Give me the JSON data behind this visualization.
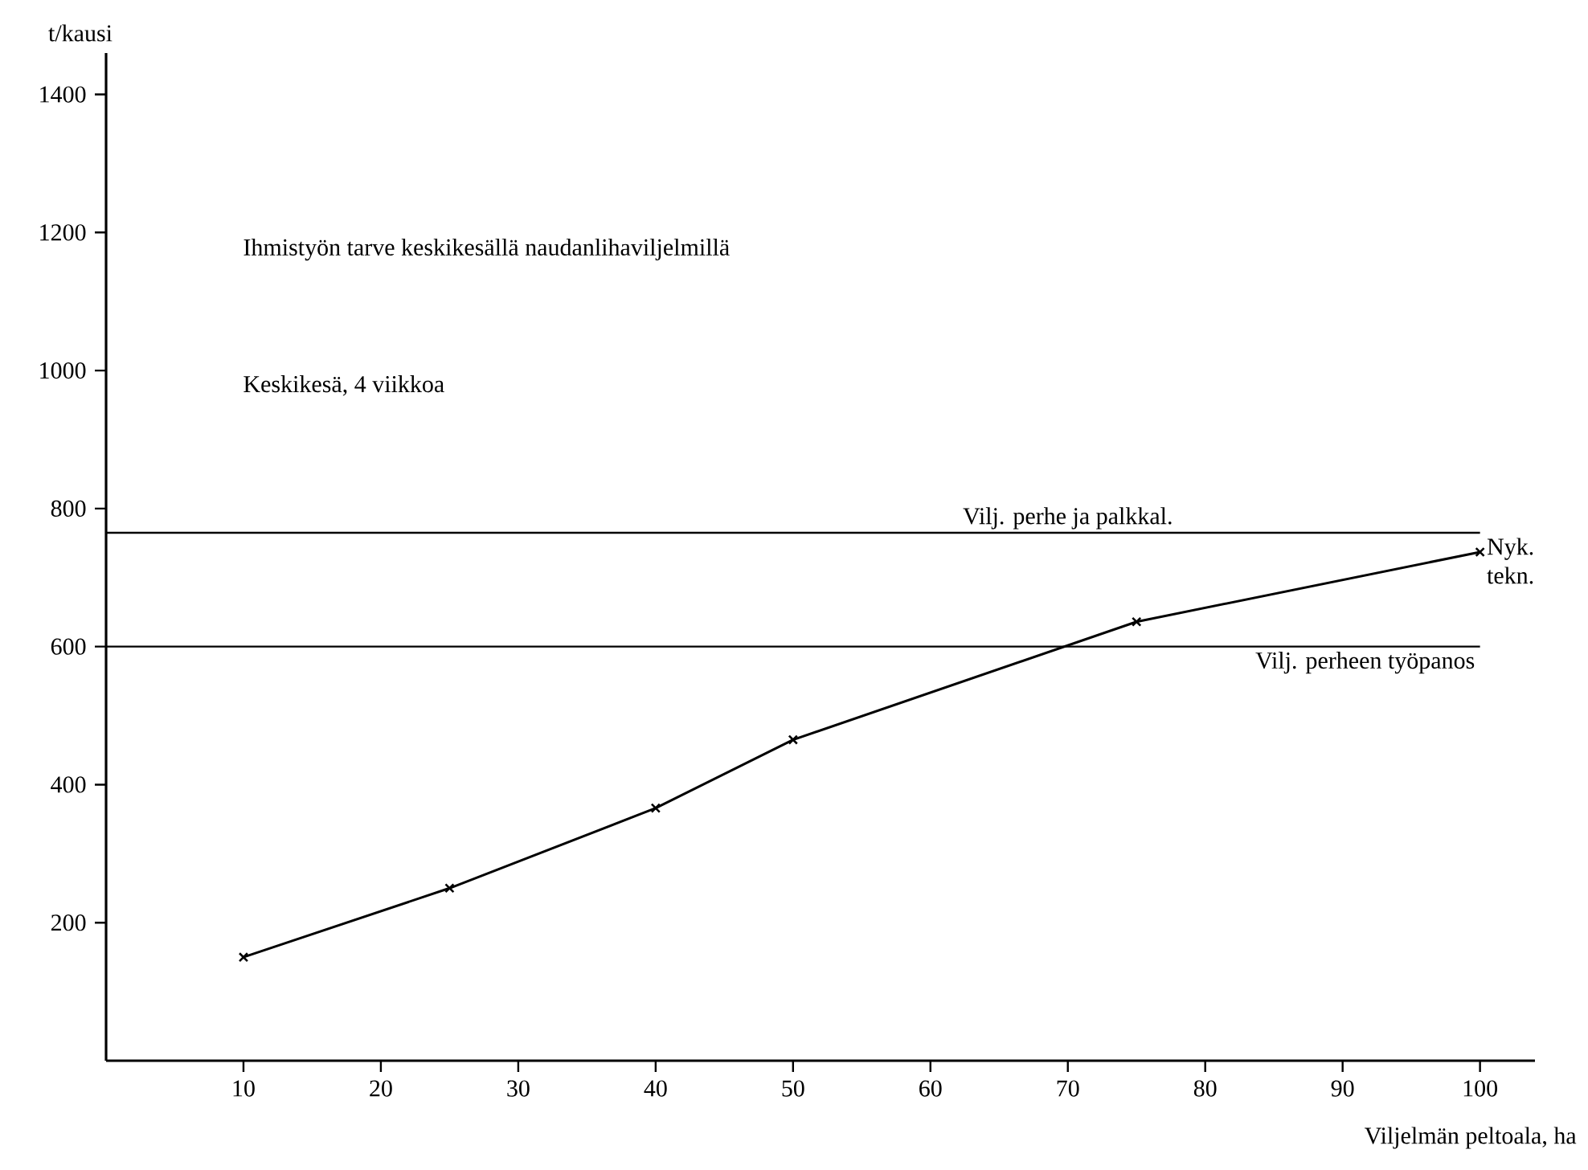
{
  "chart_data": {
    "type": "line",
    "title": "Ihmistyön tarve keskikesällä naudanlihaviljelmillä",
    "subtitle": "Keskikesä, 4 viikkoa",
    "xlabel": "Viljelmän peltoala, ha",
    "ylabel": "t/kausi",
    "x": [
      10,
      25,
      40,
      50,
      75,
      100
    ],
    "series": [
      {
        "name": "Nyk. tekn.",
        "color": "#000000",
        "values": [
          150,
          250,
          366,
          465,
          636,
          737
        ]
      }
    ],
    "xlim": [
      0,
      104
    ],
    "ylim": [
      0,
      1460
    ],
    "xticks": [
      10,
      20,
      30,
      40,
      50,
      60,
      70,
      80,
      90,
      100
    ],
    "yticks": [
      200,
      400,
      600,
      800,
      1000,
      1200,
      1400
    ],
    "ref_lines": [
      {
        "axis": "y",
        "value": 765,
        "label": "Vilj. perhe ja palkkal."
      },
      {
        "axis": "y",
        "value": 600,
        "label": "Vilj. perheen työpanos"
      }
    ],
    "marker": "cross",
    "line_style": "solid"
  }
}
